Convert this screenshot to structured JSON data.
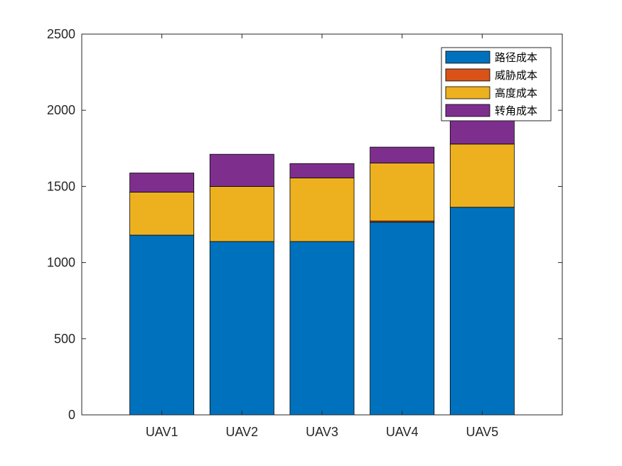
{
  "chart_data": {
    "type": "bar",
    "stacked": true,
    "categories": [
      "UAV1",
      "UAV2",
      "UAV3",
      "UAV4",
      "UAV5"
    ],
    "series": [
      {
        "name": "路径成本",
        "color": "#0072BD",
        "values": [
          1180,
          1138,
          1138,
          1265,
          1363
        ]
      },
      {
        "name": "威胁成本",
        "color": "#D95319",
        "values": [
          0,
          0,
          0,
          8,
          0
        ]
      },
      {
        "name": "高度成本",
        "color": "#EDB120",
        "values": [
          282,
          362,
          418,
          380,
          415
        ]
      },
      {
        "name": "转角成本",
        "color": "#7E2F8E",
        "values": [
          126,
          211,
          94,
          105,
          194
        ]
      }
    ],
    "ylim": [
      0,
      2500
    ],
    "yticks": [
      "0",
      "500",
      "1000",
      "1500",
      "2000",
      "2500"
    ],
    "ytick_values": [
      0,
      500,
      1000,
      1500,
      2000,
      2500
    ],
    "legend_position": "top-right",
    "grid": false
  }
}
